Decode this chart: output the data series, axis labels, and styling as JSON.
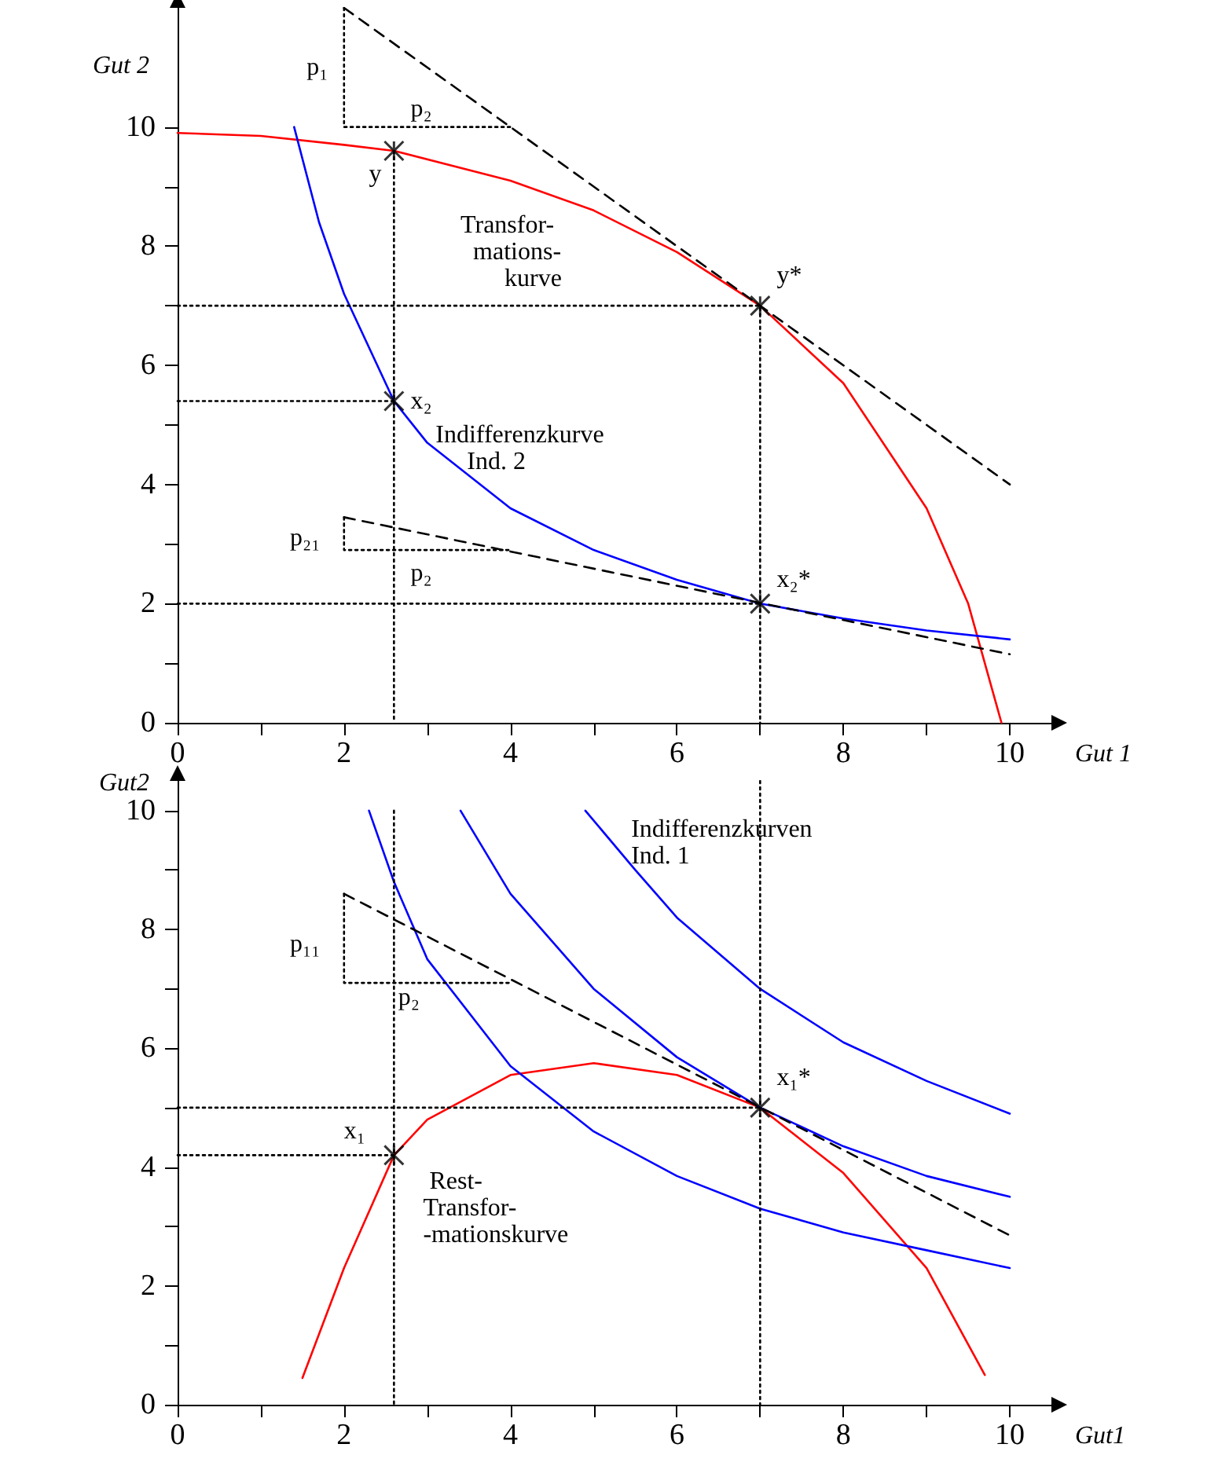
{
  "chart_data": [
    {
      "type": "line",
      "xlabel": "Gut 1",
      "ylabel": "Gut 2",
      "xlim": [
        0,
        10.5
      ],
      "ylim": [
        0,
        12
      ],
      "xticks": [
        0,
        {
          "value": 1,
          "label": null
        },
        2,
        {
          "value": 3,
          "label": null
        },
        4,
        {
          "value": 5,
          "label": null
        },
        6,
        {
          "value": 7,
          "label": null
        },
        8,
        {
          "value": 9,
          "label": null
        },
        10
      ],
      "yticks": [
        0,
        {
          "value": 1,
          "label": null
        },
        2,
        {
          "value": 3,
          "label": null
        },
        4,
        {
          "value": 5,
          "label": null
        },
        6,
        {
          "value": 7,
          "label": null
        },
        8,
        {
          "value": 9,
          "label": null
        },
        10
      ],
      "series": [
        {
          "type": "line",
          "color": "#ff0000",
          "line_style": "solid",
          "x": [
            0,
            1,
            2,
            2.6,
            4,
            5,
            6,
            7,
            8,
            9,
            9.5,
            9.8,
            9.9
          ],
          "values": [
            9.9,
            9.85,
            9.7,
            9.6,
            9.1,
            8.6,
            7.9,
            7,
            5.7,
            3.6,
            2,
            0.5,
            0
          ]
        },
        {
          "type": "line",
          "color": "#0000ff",
          "line_style": "solid",
          "x": [
            1.4,
            1.7,
            2,
            2.6,
            3,
            4,
            5,
            6,
            7,
            8,
            9,
            10
          ],
          "values": [
            10,
            8.4,
            7.2,
            5.4,
            4.7,
            3.6,
            2.9,
            2.4,
            2,
            1.75,
            1.55,
            1.4
          ]
        },
        {
          "type": "line",
          "color": "#000000",
          "line_style": "dashed",
          "x": [
            2,
            10
          ],
          "values": [
            12,
            4
          ]
        },
        {
          "type": "line",
          "color": "#000000",
          "line_style": "dashed",
          "x": [
            2,
            10
          ],
          "values": [
            3.45,
            1.15
          ]
        },
        {
          "type": "line",
          "color": "#000000",
          "line_style": "dotted",
          "x": [
            2,
            2,
            4
          ],
          "values": [
            12,
            10,
            10
          ]
        },
        {
          "type": "line",
          "color": "#000000",
          "line_style": "dotted",
          "x": [
            2,
            2,
            4
          ],
          "values": [
            3.45,
            2.9,
            2.9
          ]
        },
        {
          "type": "line",
          "color": "#000000",
          "line_style": "dotted",
          "x": [
            0,
            7,
            7
          ],
          "values": [
            7,
            7,
            0
          ]
        },
        {
          "type": "line",
          "color": "#000000",
          "line_style": "dotted",
          "x": [
            0,
            7
          ],
          "values": [
            2,
            2
          ]
        },
        {
          "type": "line",
          "color": "#000000",
          "line_style": "dotted",
          "x": [
            0,
            2.6
          ],
          "values": [
            5.4,
            5.4
          ]
        },
        {
          "type": "line",
          "color": "#000000",
          "line_style": "dotted",
          "x": [
            2.6,
            2.6
          ],
          "values": [
            9.6,
            0
          ]
        },
        {
          "type": "scatter",
          "color": "#000000",
          "marker": "cross",
          "x": [
            2.6,
            7,
            2.6,
            7
          ],
          "values": [
            9.6,
            7,
            5.4,
            2
          ]
        }
      ],
      "annotations": [
        "p₁",
        "p₂",
        "y",
        "y*",
        "Transfor-\n  mations-\n       kurve",
        "x₂",
        "Indifferenzkurve\n     Ind. 2",
        "p₂₁",
        "p₂",
        "x₂*"
      ]
    },
    {
      "type": "line",
      "xlabel": "Gut1",
      "ylabel": "Gut2",
      "xlim": [
        0,
        10.5
      ],
      "ylim": [
        0,
        10.5
      ],
      "xticks": [
        0,
        {
          "value": 1,
          "label": null
        },
        2,
        {
          "value": 3,
          "label": null
        },
        4,
        {
          "value": 5,
          "label": null
        },
        6,
        {
          "value": 7,
          "label": null
        },
        8,
        {
          "value": 9,
          "label": null
        },
        10
      ],
      "yticks": [
        0,
        {
          "value": 1,
          "label": null
        },
        2,
        {
          "value": 3,
          "label": null
        },
        4,
        {
          "value": 5,
          "label": null
        },
        6,
        {
          "value": 7,
          "label": null
        },
        8,
        {
          "value": 9,
          "label": null
        },
        10
      ],
      "series": [
        {
          "type": "line",
          "color": "#ff0000",
          "line_style": "solid",
          "x": [
            1.5,
            2,
            2.6,
            3,
            4,
            5,
            6,
            7,
            8,
            9,
            9.7
          ],
          "values": [
            0.45,
            2.3,
            4.2,
            4.8,
            5.55,
            5.75,
            5.55,
            5,
            3.9,
            2.3,
            0.5
          ]
        },
        {
          "type": "line",
          "color": "#0000ff",
          "line_style": "solid",
          "x": [
            2.3,
            2.6,
            3,
            4,
            5,
            6,
            7,
            8,
            9,
            10
          ],
          "values": [
            10,
            8.8,
            7.5,
            5.7,
            4.6,
            3.85,
            3.3,
            2.9,
            2.6,
            2.3
          ]
        },
        {
          "type": "line",
          "color": "#0000ff",
          "line_style": "solid",
          "x": [
            3.4,
            4,
            5,
            6,
            7,
            8,
            9,
            10
          ],
          "values": [
            10,
            8.6,
            7,
            5.85,
            5,
            4.35,
            3.85,
            3.5
          ]
        },
        {
          "type": "line",
          "color": "#0000ff",
          "line_style": "solid",
          "x": [
            4.9,
            5.5,
            6,
            7,
            8,
            9,
            10
          ],
          "values": [
            10,
            9,
            8.2,
            7,
            6.1,
            5.45,
            4.9
          ]
        },
        {
          "type": "line",
          "color": "#000000",
          "line_style": "dashed",
          "x": [
            2,
            10
          ],
          "values": [
            8.6,
            2.85
          ]
        },
        {
          "type": "line",
          "color": "#000000",
          "line_style": "dotted",
          "x": [
            2,
            2,
            4
          ],
          "values": [
            8.6,
            7.1,
            7.1
          ]
        },
        {
          "type": "line",
          "color": "#000000",
          "line_style": "dotted",
          "x": [
            2.6,
            2.6
          ],
          "values": [
            10,
            0
          ]
        },
        {
          "type": "line",
          "color": "#000000",
          "line_style": "dotted",
          "x": [
            7,
            7
          ],
          "values": [
            10.5,
            0
          ]
        },
        {
          "type": "line",
          "color": "#000000",
          "line_style": "dotted",
          "x": [
            0,
            7
          ],
          "values": [
            5,
            5
          ]
        },
        {
          "type": "line",
          "color": "#000000",
          "line_style": "dotted",
          "x": [
            0,
            2.6
          ],
          "values": [
            4.2,
            4.2
          ]
        },
        {
          "type": "scatter",
          "color": "#000000",
          "marker": "cross",
          "x": [
            2.6,
            7
          ],
          "values": [
            4.2,
            5
          ]
        }
      ],
      "annotations": [
        "Indifferenzkurven\nInd. 1",
        "p₁₁",
        "p₂",
        "x₁",
        "x₁*",
        " Rest-\nTransfor-\n-mationskurve"
      ]
    }
  ]
}
